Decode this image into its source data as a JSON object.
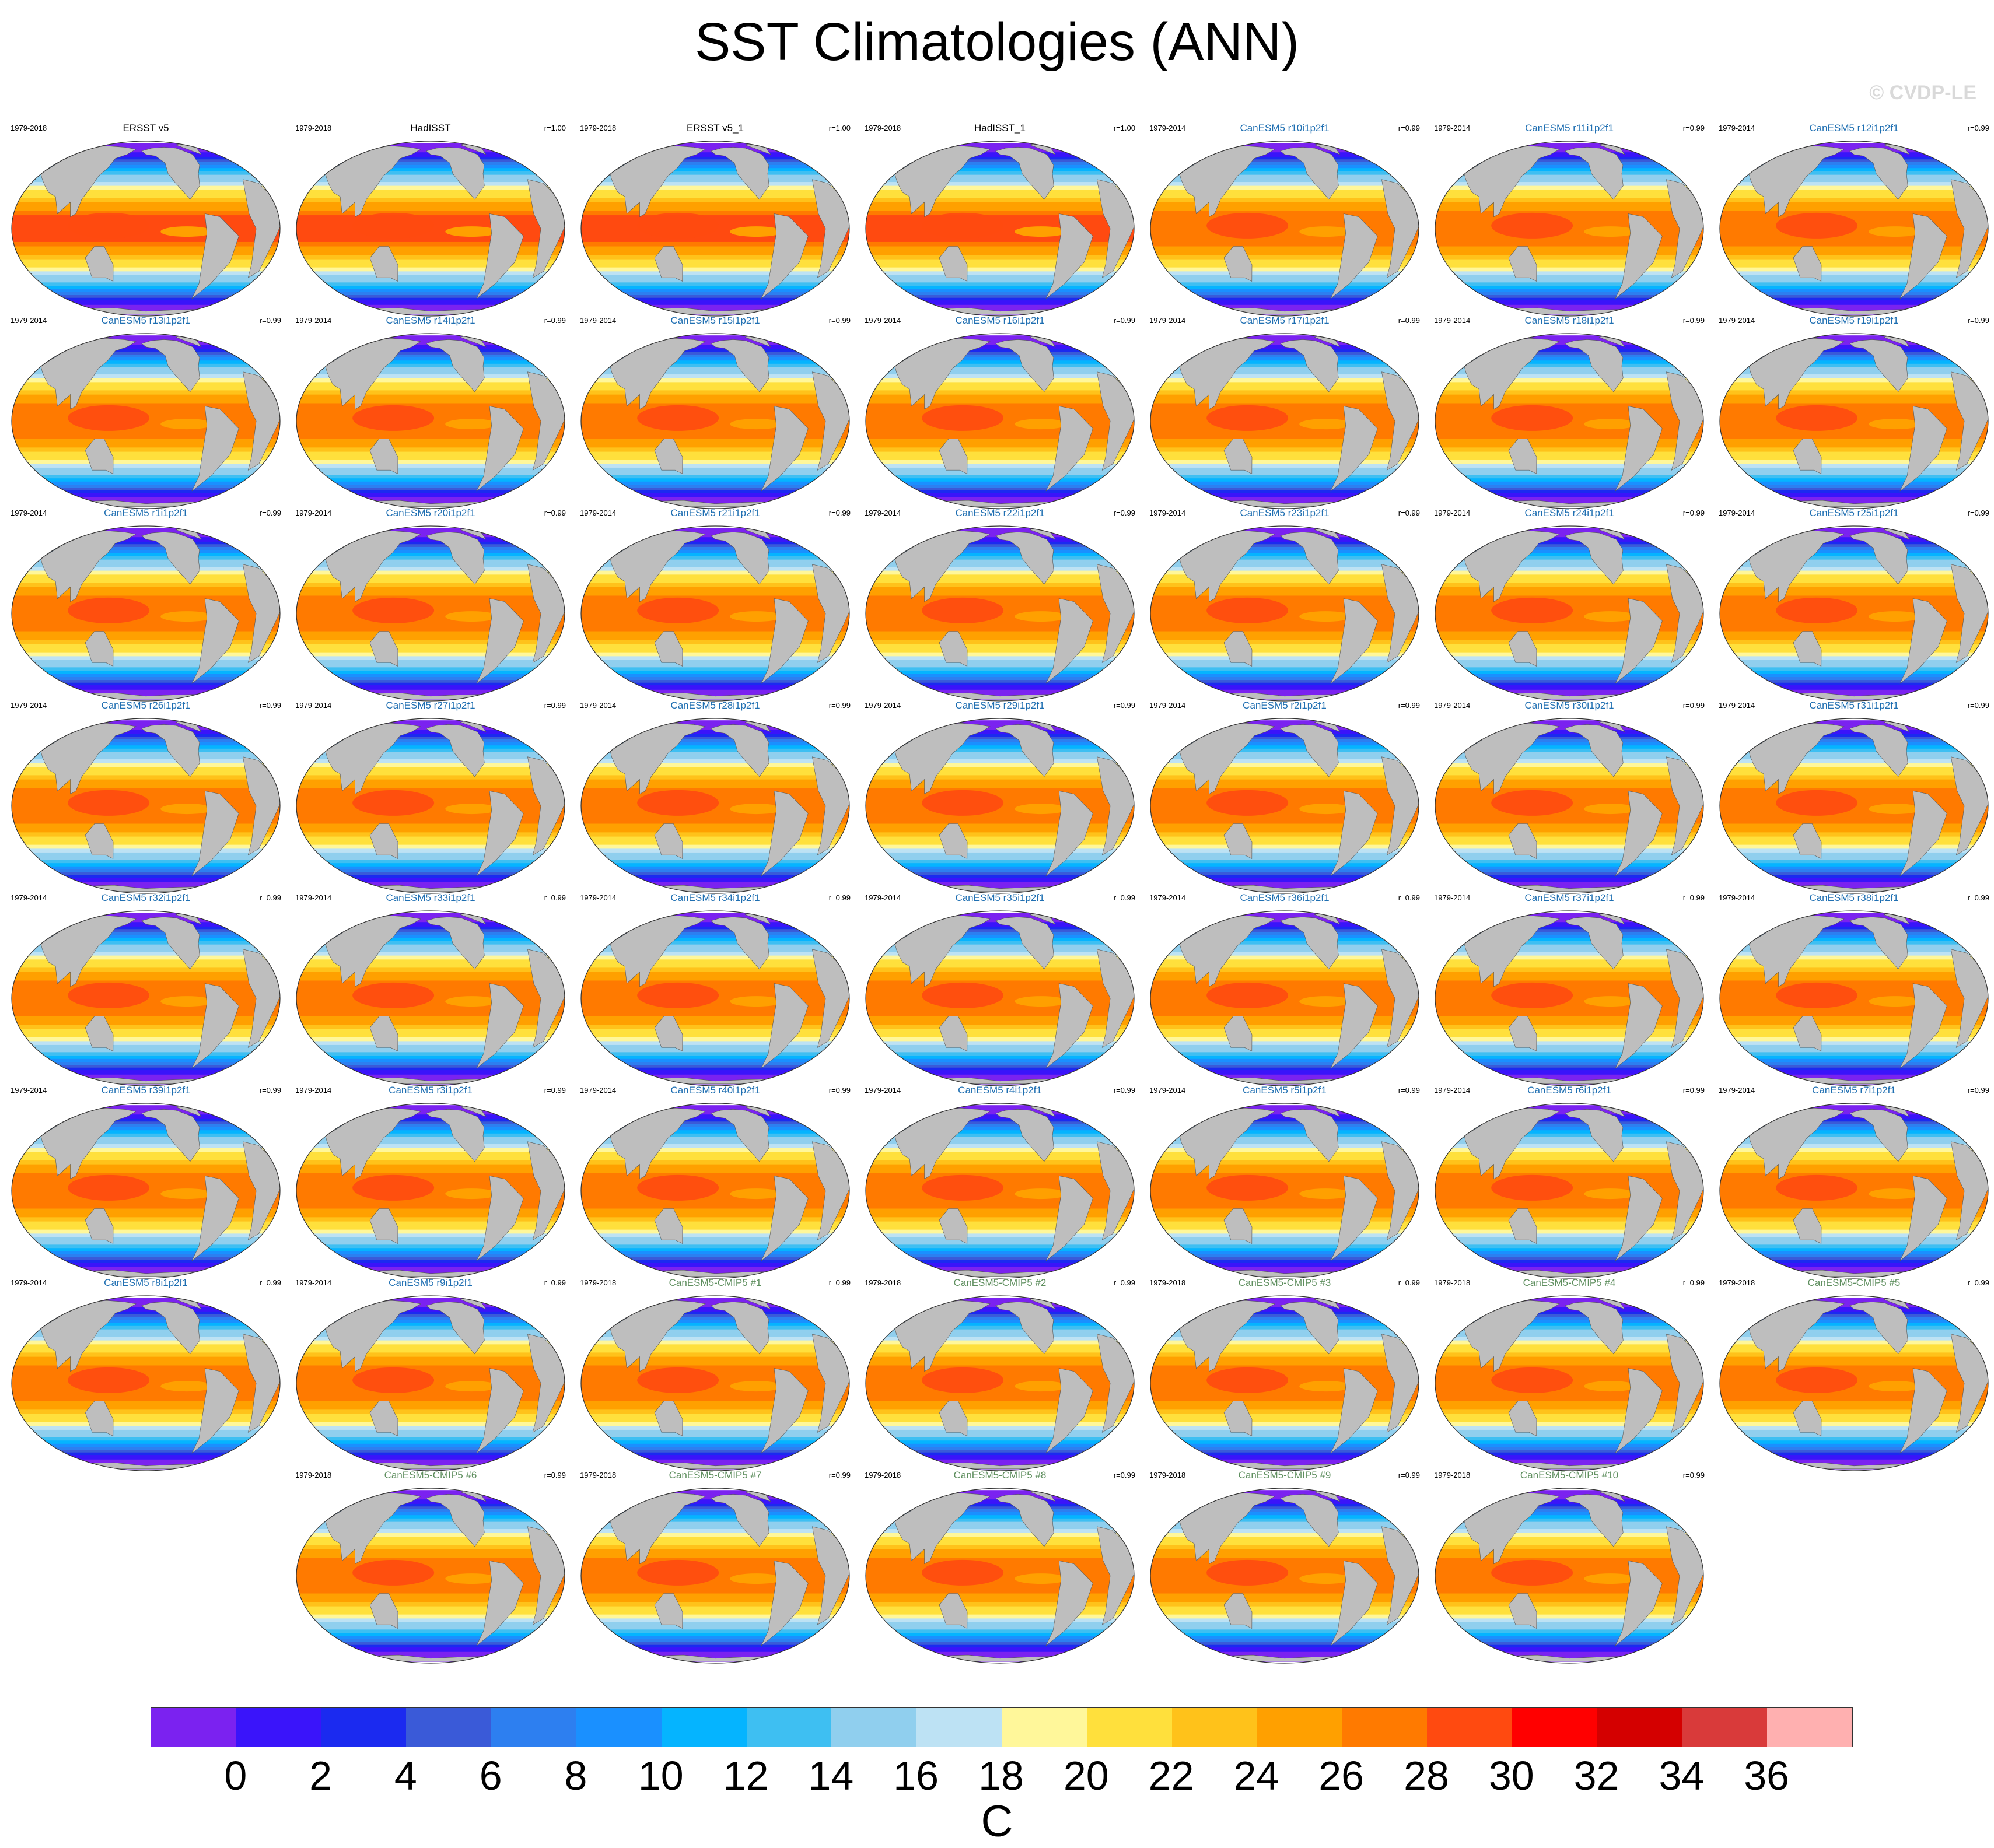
{
  "title": "SST Climatologies (ANN)",
  "watermark": "© CVDP-LE",
  "chart_data": {
    "type": "heatmap",
    "title": "SST Climatologies (ANN)",
    "layout": "small multiples of global maps",
    "panels": [
      {
        "name": "ERSST v5",
        "period": "1979-2018",
        "r": "",
        "kind": "obs"
      },
      {
        "name": "HadISST",
        "period": "1979-2018",
        "r": "r=1.00",
        "kind": "obs"
      },
      {
        "name": "ERSST v5_1",
        "period": "1979-2018",
        "r": "r=1.00",
        "kind": "obs"
      },
      {
        "name": "HadISST_1",
        "period": "1979-2018",
        "r": "r=1.00",
        "kind": "obs"
      },
      {
        "name": "CanESM5 r10i1p2f1",
        "period": "1979-2014",
        "r": "r=0.99",
        "kind": "le"
      },
      {
        "name": "CanESM5 r11i1p2f1",
        "period": "1979-2014",
        "r": "r=0.99",
        "kind": "le"
      },
      {
        "name": "CanESM5 r12i1p2f1",
        "period": "1979-2014",
        "r": "r=0.99",
        "kind": "le"
      },
      {
        "name": "CanESM5 r13i1p2f1",
        "period": "1979-2014",
        "r": "r=0.99",
        "kind": "le"
      },
      {
        "name": "CanESM5 r14i1p2f1",
        "period": "1979-2014",
        "r": "r=0.99",
        "kind": "le"
      },
      {
        "name": "CanESM5 r15i1p2f1",
        "period": "1979-2014",
        "r": "r=0.99",
        "kind": "le"
      },
      {
        "name": "CanESM5 r16i1p2f1",
        "period": "1979-2014",
        "r": "r=0.99",
        "kind": "le"
      },
      {
        "name": "CanESM5 r17i1p2f1",
        "period": "1979-2014",
        "r": "r=0.99",
        "kind": "le"
      },
      {
        "name": "CanESM5 r18i1p2f1",
        "period": "1979-2014",
        "r": "r=0.99",
        "kind": "le"
      },
      {
        "name": "CanESM5 r19i1p2f1",
        "period": "1979-2014",
        "r": "r=0.99",
        "kind": "le"
      },
      {
        "name": "CanESM5 r1i1p2f1",
        "period": "1979-2014",
        "r": "r=0.99",
        "kind": "le"
      },
      {
        "name": "CanESM5 r20i1p2f1",
        "period": "1979-2014",
        "r": "r=0.99",
        "kind": "le"
      },
      {
        "name": "CanESM5 r21i1p2f1",
        "period": "1979-2014",
        "r": "r=0.99",
        "kind": "le"
      },
      {
        "name": "CanESM5 r22i1p2f1",
        "period": "1979-2014",
        "r": "r=0.99",
        "kind": "le"
      },
      {
        "name": "CanESM5 r23i1p2f1",
        "period": "1979-2014",
        "r": "r=0.99",
        "kind": "le"
      },
      {
        "name": "CanESM5 r24i1p2f1",
        "period": "1979-2014",
        "r": "r=0.99",
        "kind": "le"
      },
      {
        "name": "CanESM5 r25i1p2f1",
        "period": "1979-2014",
        "r": "r=0.99",
        "kind": "le"
      },
      {
        "name": "CanESM5 r26i1p2f1",
        "period": "1979-2014",
        "r": "r=0.99",
        "kind": "le"
      },
      {
        "name": "CanESM5 r27i1p2f1",
        "period": "1979-2014",
        "r": "r=0.99",
        "kind": "le"
      },
      {
        "name": "CanESM5 r28i1p2f1",
        "period": "1979-2014",
        "r": "r=0.99",
        "kind": "le"
      },
      {
        "name": "CanESM5 r29i1p2f1",
        "period": "1979-2014",
        "r": "r=0.99",
        "kind": "le"
      },
      {
        "name": "CanESM5 r2i1p2f1",
        "period": "1979-2014",
        "r": "r=0.99",
        "kind": "le"
      },
      {
        "name": "CanESM5 r30i1p2f1",
        "period": "1979-2014",
        "r": "r=0.99",
        "kind": "le"
      },
      {
        "name": "CanESM5 r31i1p2f1",
        "period": "1979-2014",
        "r": "r=0.99",
        "kind": "le"
      },
      {
        "name": "CanESM5 r32i1p2f1",
        "period": "1979-2014",
        "r": "r=0.99",
        "kind": "le"
      },
      {
        "name": "CanESM5 r33i1p2f1",
        "period": "1979-2014",
        "r": "r=0.99",
        "kind": "le"
      },
      {
        "name": "CanESM5 r34i1p2f1",
        "period": "1979-2014",
        "r": "r=0.99",
        "kind": "le"
      },
      {
        "name": "CanESM5 r35i1p2f1",
        "period": "1979-2014",
        "r": "r=0.99",
        "kind": "le"
      },
      {
        "name": "CanESM5 r36i1p2f1",
        "period": "1979-2014",
        "r": "r=0.99",
        "kind": "le"
      },
      {
        "name": "CanESM5 r37i1p2f1",
        "period": "1979-2014",
        "r": "r=0.99",
        "kind": "le"
      },
      {
        "name": "CanESM5 r38i1p2f1",
        "period": "1979-2014",
        "r": "r=0.99",
        "kind": "le"
      },
      {
        "name": "CanESM5 r39i1p2f1",
        "period": "1979-2014",
        "r": "r=0.99",
        "kind": "le"
      },
      {
        "name": "CanESM5 r3i1p2f1",
        "period": "1979-2014",
        "r": "r=0.99",
        "kind": "le"
      },
      {
        "name": "CanESM5 r40i1p2f1",
        "period": "1979-2014",
        "r": "r=0.99",
        "kind": "le"
      },
      {
        "name": "CanESM5 r4i1p2f1",
        "period": "1979-2014",
        "r": "r=0.99",
        "kind": "le"
      },
      {
        "name": "CanESM5 r5i1p2f1",
        "period": "1979-2014",
        "r": "r=0.99",
        "kind": "le"
      },
      {
        "name": "CanESM5 r6i1p2f1",
        "period": "1979-2014",
        "r": "r=0.99",
        "kind": "le"
      },
      {
        "name": "CanESM5 r7i1p2f1",
        "period": "1979-2014",
        "r": "r=0.99",
        "kind": "le"
      },
      {
        "name": "CanESM5 r8i1p2f1",
        "period": "1979-2014",
        "r": "r=0.99",
        "kind": "le"
      },
      {
        "name": "CanESM5 r9i1p2f1",
        "period": "1979-2014",
        "r": "r=0.99",
        "kind": "le"
      },
      {
        "name": "CanESM5-CMIP5 #1",
        "period": "1979-2018",
        "r": "r=0.99",
        "kind": "cmip5"
      },
      {
        "name": "CanESM5-CMIP5 #2",
        "period": "1979-2018",
        "r": "r=0.99",
        "kind": "cmip5"
      },
      {
        "name": "CanESM5-CMIP5 #3",
        "period": "1979-2018",
        "r": "r=0.99",
        "kind": "cmip5"
      },
      {
        "name": "CanESM5-CMIP5 #4",
        "period": "1979-2018",
        "r": "r=0.99",
        "kind": "cmip5"
      },
      {
        "name": "CanESM5-CMIP5 #5",
        "period": "1979-2018",
        "r": "r=0.99",
        "kind": "cmip5"
      },
      {
        "name": "CanESM5-CMIP5 #6",
        "period": "1979-2018",
        "r": "r=0.99",
        "kind": "cmip5"
      },
      {
        "name": "CanESM5-CMIP5 #7",
        "period": "1979-2018",
        "r": "r=0.99",
        "kind": "cmip5"
      },
      {
        "name": "CanESM5-CMIP5 #8",
        "period": "1979-2018",
        "r": "r=0.99",
        "kind": "cmip5"
      },
      {
        "name": "CanESM5-CMIP5 #9",
        "period": "1979-2018",
        "r": "r=0.99",
        "kind": "cmip5"
      },
      {
        "name": "CanESM5-CMIP5 #10",
        "period": "1979-2018",
        "r": "r=0.99",
        "kind": "cmip5"
      }
    ],
    "label_colors": {
      "obs": "#000000",
      "le": "#1f6fb2",
      "cmip5": "#5f8f5f"
    },
    "colorbar": {
      "levels": [
        -1,
        0,
        1,
        2,
        3,
        4,
        5,
        6,
        7,
        8,
        9,
        10,
        11,
        12,
        13,
        14,
        15,
        16,
        17,
        18,
        19,
        20,
        21,
        22,
        23,
        24,
        25,
        26,
        27,
        28,
        29,
        30,
        31,
        32,
        33,
        34,
        35,
        36,
        37
      ],
      "colors": [
        "#7b22f0",
        "#3a14fa",
        "#1b2af0",
        "#3a5ad8",
        "#2d7ff0",
        "#1a90ff",
        "#05b4ff",
        "#3ebff2",
        "#90cfee",
        "#bde2f4",
        "#fff79a",
        "#ffe03c",
        "#ffc21a",
        "#ffa000",
        "#ff7a00",
        "#ff4a10",
        "#ff0000",
        "#d40000",
        "#d93a3a",
        "#ffb0b0"
      ],
      "tick_labels": [
        "0",
        "2",
        "4",
        "6",
        "8",
        "10",
        "12",
        "14",
        "16",
        "18",
        "20",
        "22",
        "24",
        "26",
        "28",
        "30",
        "32",
        "34",
        "36"
      ],
      "units": "C"
    },
    "land_color": "#bebebe"
  }
}
